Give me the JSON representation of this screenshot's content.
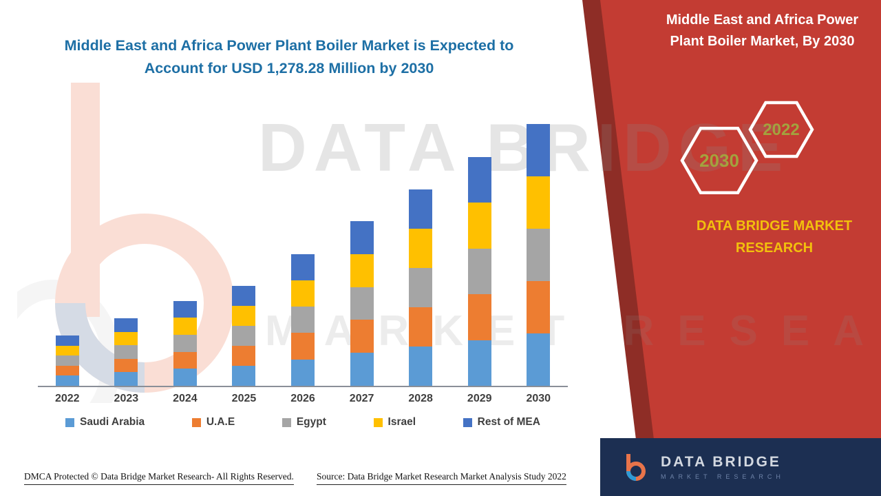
{
  "left_title": {
    "line1": "Middle East and Africa Power Plant Boiler Market is Expected to",
    "line2": "Account for USD 1,278.28 Million by 2030"
  },
  "right_panel": {
    "title_line1": "Middle East and Africa Power",
    "title_line2": "Plant Boiler Market, By 2030",
    "hex_back_label": "2030",
    "hex_front_label": "2022",
    "brand_line1": "DATA BRIDGE MARKET",
    "brand_line2": "RESEARCH",
    "panel_color": "#C33C33",
    "panel_edge_color": "#8E2D26",
    "brand_text_color": "#F2C00D",
    "hex_label_color": "#A3A23E"
  },
  "watermark": {
    "line1": "DATA BRIDGE",
    "line2": "MARKET RESEARCH"
  },
  "logo_box": {
    "brand": "DATA BRIDGE",
    "sub": "MARKET RESEARCH",
    "bg": "#1C2F52"
  },
  "footer": {
    "dmca": "DMCA Protected © Data Bridge Market Research- All Rights Reserved.",
    "source": "Source: Data Bridge Market Research Market Analysis Study 2022"
  },
  "chart_data": {
    "type": "bar",
    "stacked": true,
    "title": "Middle East and Africa Power Plant Boiler Market is Expected to Account for USD 1,278.28 Million by 2030",
    "unit": "USD Million",
    "categories": [
      "2022",
      "2023",
      "2024",
      "2025",
      "2026",
      "2027",
      "2028",
      "2029",
      "2030"
    ],
    "series": [
      {
        "name": "Saudi Arabia",
        "color": "#5B9BD5",
        "values": [
          49,
          66,
          83,
          98,
          129,
          161,
          192,
          224,
          255.66
        ]
      },
      {
        "name": "U.A.E",
        "color": "#ED7D31",
        "values": [
          49,
          66,
          83,
          98,
          129,
          161,
          192,
          224,
          255.66
        ]
      },
      {
        "name": "Egypt",
        "color": "#A5A5A5",
        "values": [
          49,
          66,
          83,
          98,
          129,
          161,
          192,
          224,
          255.66
        ]
      },
      {
        "name": "Israel",
        "color": "#FFC000",
        "values": [
          49,
          66,
          83,
          98,
          129,
          161,
          192,
          224,
          255.66
        ]
      },
      {
        "name": "Rest of MEA",
        "color": "#4472C4",
        "values": [
          49,
          66,
          83,
          98,
          129,
          161,
          192,
          224,
          255.66
        ]
      }
    ],
    "totals": [
      245,
      330,
      415,
      490,
      645,
      805,
      960,
      1120,
      1278.28
    ],
    "ylim": [
      0,
      1300
    ],
    "grid": false,
    "legend_position": "bottom"
  }
}
